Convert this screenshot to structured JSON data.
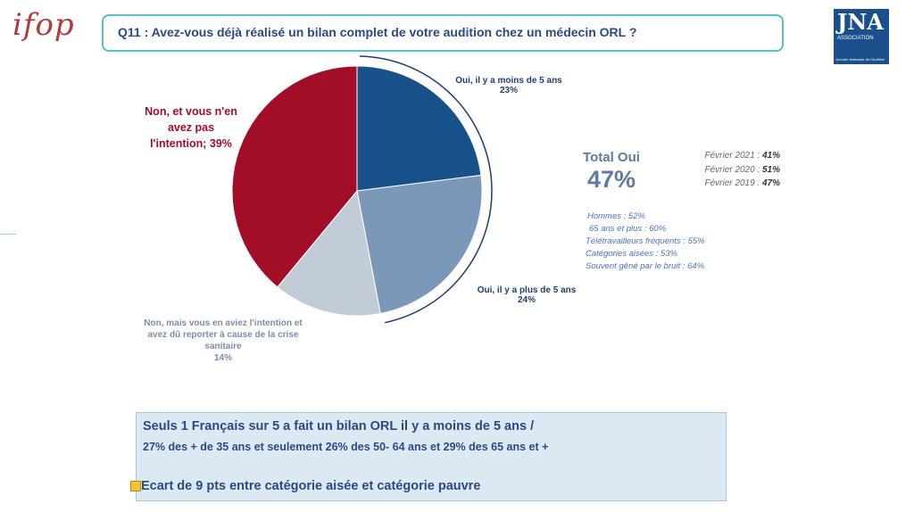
{
  "logo_text": "ifop",
  "question": "Q11 : Avez-vous déjà réalisé un bilan complet de votre audition chez un médecin ORL ?",
  "jna_logo": {
    "letters": "JNA",
    "sub": "ASSOCIATION",
    "foot": "Journée Nationale de l'Audition"
  },
  "chart_data": {
    "type": "pie",
    "slices": [
      {
        "label": "Oui, il y a moins de 5 ans",
        "value": 23,
        "value_label": "23%",
        "color": "#18508a"
      },
      {
        "label": "Oui, il y a plus de 5 ans",
        "value": 24,
        "value_label": "24%",
        "color": "#7b98b8"
      },
      {
        "label": "Non, mais vous en aviez l'intention et avez dû reporter à cause de la crise sanitaire",
        "value": 14,
        "value_label": "14%",
        "color": "#c2ccd9"
      },
      {
        "label": "Non, et vous n'en avez pas l'intention; 39%",
        "value": 39,
        "color": "#a20d27"
      }
    ]
  },
  "labels": {
    "oui_moins_1": "Oui, il y a moins de 5 ans",
    "oui_moins_2": "23%",
    "oui_plus_1": "Oui, il y a plus de 5 ans",
    "oui_plus_2": "24%",
    "non_report_1": "Non, mais vous en aviez l'intention et",
    "non_report_2": "avez dû reporter à cause de la crise",
    "non_report_3": "sanitaire",
    "non_report_4": "14%",
    "non_intention_1": "Non, et vous n'en",
    "non_intention_2": "avez pas",
    "non_intention_3": "l'intention; 39%"
  },
  "total": {
    "label": "Total Oui",
    "value": "47%"
  },
  "history": [
    {
      "text": "Février 2021 : ",
      "value": "41%"
    },
    {
      "text": "Février 2020 : ",
      "value": "51%"
    },
    {
      "text": "Février 2019 : ",
      "value": "47%"
    }
  ],
  "subgroups": [
    "Hommes : 52%",
    "65 ans et plus : 60%",
    "Télétravailleurs fréquents : 55%",
    "Catégories aisées : 53%",
    "Souvent gêné par le bruit : 64%"
  ],
  "bottom": {
    "line1": "Seuls 1 Français sur 5 a fait un bilan ORL il y a moins de 5 ans /",
    "line2": "27% des + de 35 ans et seulement 26% des 50- 64 ans et 29% des 65 ans et +",
    "line3": "Ecart de 9 pts entre catégorie aisée et catégorie pauvre"
  }
}
